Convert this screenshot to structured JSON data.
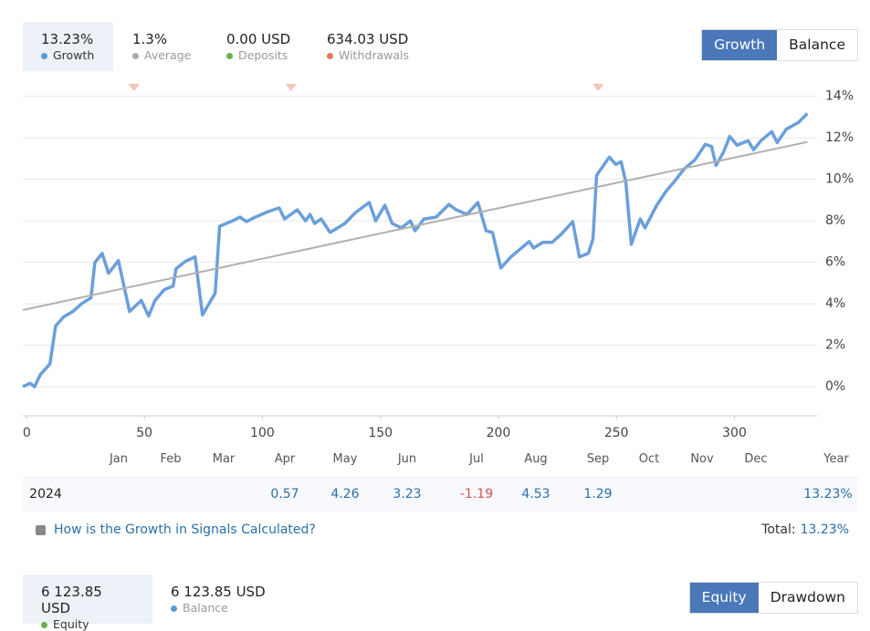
{
  "stats": [
    {
      "value": "13.23%",
      "label": "Growth",
      "color": "#5b9bd5"
    },
    {
      "value": "1.3%",
      "label": "Average",
      "color": "#aaaaaa"
    },
    {
      "value": "0.00 USD",
      "label": "Deposits",
      "color": "#6ab04c"
    },
    {
      "value": "634.03 USD",
      "label": "Withdrawals",
      "color": "#e07a5f"
    }
  ],
  "tabs": [
    "Growth",
    "Balance"
  ],
  "chart_data": {
    "type": "line",
    "xlim": [
      -1.5,
      335
    ],
    "ylim": [
      -1.4,
      14.6
    ],
    "xticks": [
      0,
      50,
      100,
      150,
      200,
      250,
      300
    ],
    "yticks": [
      {
        "value": 0,
        "label": "0%"
      },
      {
        "value": 2,
        "label": "2%"
      },
      {
        "value": 4,
        "label": "4%"
      },
      {
        "value": 6,
        "label": "6%"
      },
      {
        "value": 8,
        "label": "8%"
      },
      {
        "value": 10,
        "label": "10%"
      },
      {
        "value": 12,
        "label": "12%"
      },
      {
        "value": 14,
        "label": "14%"
      }
    ],
    "grid": true,
    "series": [
      {
        "color": "#6a9fdc",
        "x": [
          -1.5,
          1.5,
          3.5,
          5.8,
          10,
          12.4,
          15.8,
          19.7,
          23.6,
          27.4,
          29,
          32.1,
          34.8,
          39,
          43.7,
          48.7,
          51.8,
          54.5,
          58.4,
          62.2,
          63.4,
          67.3,
          71.5,
          74.6,
          80,
          81.9,
          87.4,
          90.5,
          93.2,
          97,
          102.4,
          107.1,
          109.4,
          114.8,
          118.3,
          120.2,
          122.1,
          124.9,
          128.7,
          134.9,
          139.5,
          145.3,
          148,
          151.9,
          155,
          158.9,
          162.7,
          164.7,
          168.5,
          173.6,
          179,
          182.1,
          186.7,
          191.3,
          194.8,
          197.5,
          201,
          205.3,
          213,
          214.9,
          218.8,
          222.7,
          226.6,
          231.5,
          234.3,
          238.1,
          240.1,
          241.6,
          247,
          249.7,
          252,
          254,
          256.3,
          260.1,
          262.1,
          267.1,
          270.9,
          274.8,
          278.7,
          283.3,
          287.6,
          290.3,
          292.2,
          295.3,
          298,
          301.1,
          305.8,
          308.1,
          311.2,
          315.8,
          318.1,
          322,
          327,
          330.9
        ],
        "values": [
          0,
          0.17,
          0,
          0.57,
          1.1,
          2.93,
          3.37,
          3.63,
          4.02,
          4.29,
          5.99,
          6.43,
          5.47,
          6.08,
          3.63,
          4.16,
          3.41,
          4.16,
          4.68,
          4.86,
          5.69,
          6.04,
          6.26,
          3.46,
          4.51,
          7.74,
          8.0,
          8.18,
          7.96,
          8.18,
          8.44,
          8.62,
          8.09,
          8.53,
          8.0,
          8.31,
          7.87,
          8.09,
          7.44,
          7.87,
          8.4,
          8.88,
          8.0,
          8.75,
          7.87,
          7.66,
          8.0,
          7.52,
          8.09,
          8.18,
          8.79,
          8.53,
          8.31,
          8.88,
          7.52,
          7.44,
          5.73,
          6.26,
          7.0,
          6.69,
          6.96,
          6.96,
          7.35,
          7.96,
          6.26,
          6.43,
          7.13,
          10.19,
          11.07,
          10.72,
          10.85,
          9.84,
          6.87,
          8.09,
          7.66,
          8.75,
          9.41,
          9.93,
          10.5,
          10.94,
          11.68,
          11.59,
          10.67,
          11.29,
          12.07,
          11.64,
          11.86,
          11.42,
          11.86,
          12.3,
          11.77,
          12.42,
          12.73,
          13.17
        ]
      },
      {
        "color": "#b0b0b0",
        "x": [
          -1.5,
          330.9
        ],
        "values": [
          3.7,
          11.8
        ]
      }
    ],
    "markers": {
      "x": [
        45.6,
        112.1,
        242.3
      ],
      "color": "#f6c4b4"
    }
  },
  "months": [
    "Jan",
    "Feb",
    "Mar",
    "Apr",
    "May",
    "Jun",
    "Jul",
    "Aug",
    "Sep",
    "Oct",
    "Nov",
    "Dec",
    "Year"
  ],
  "year_row": {
    "year": "2024",
    "values": [
      null,
      null,
      null,
      "0.57",
      "4.26",
      "3.23",
      "-1.19",
      "4.53",
      "1.29",
      null,
      null,
      null,
      "13.23%"
    ]
  },
  "help_link": "How is the Growth in Signals Calculated?",
  "total": {
    "label": "Total:",
    "value": "13.23%"
  },
  "bottom_stats": [
    {
      "value": "6 123.85 USD",
      "label": "Equity",
      "color": "#6ab04c"
    },
    {
      "value": "6 123.85 USD",
      "label": "Balance",
      "color": "#5b9bd5"
    }
  ],
  "bottom_tabs": [
    "Equity",
    "Drawdown"
  ]
}
